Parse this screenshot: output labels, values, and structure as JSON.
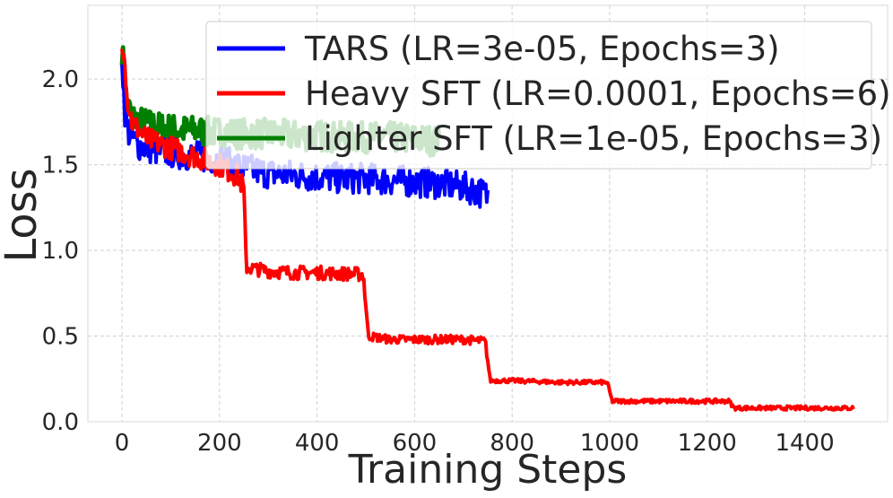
{
  "chart_data": {
    "type": "line",
    "title": "",
    "xlabel": "Training Steps",
    "ylabel": "Loss",
    "xlim": [
      -70,
      1570
    ],
    "ylim": [
      0,
      2.43
    ],
    "xticks": [
      "0",
      "200",
      "400",
      "600",
      "800",
      "1000",
      "1200",
      "1400"
    ],
    "xtick_values": [
      0,
      200,
      400,
      600,
      800,
      1000,
      1200,
      1400
    ],
    "yticks": [
      "0.0",
      "0.5",
      "1.0",
      "1.5",
      "2.0"
    ],
    "ytick_values": [
      0.0,
      0.5,
      1.0,
      1.5,
      2.0
    ],
    "grid": true,
    "legend_position": "top-right",
    "series": [
      {
        "name": "TARS (LR=3e-05, Epochs=3)",
        "color": "#0000ff",
        "x": [
          0,
          5,
          10,
          20,
          30,
          50,
          75,
          100,
          150,
          200,
          250,
          300,
          350,
          400,
          450,
          500,
          550,
          600,
          650,
          700,
          725,
          750
        ],
        "y": [
          2.15,
          1.85,
          1.72,
          1.66,
          1.62,
          1.6,
          1.58,
          1.57,
          1.55,
          1.53,
          1.48,
          1.45,
          1.44,
          1.43,
          1.42,
          1.42,
          1.41,
          1.4,
          1.39,
          1.37,
          1.35,
          1.32
        ]
      },
      {
        "name": "Heavy SFT (LR=0.0001, Epochs=6)",
        "color": "#ff0000",
        "x": [
          0,
          5,
          10,
          20,
          50,
          100,
          150,
          200,
          240,
          250,
          255,
          300,
          350,
          400,
          495,
          505,
          550,
          600,
          700,
          745,
          755,
          800,
          900,
          995,
          1005,
          1100,
          1200,
          1245,
          1255,
          1350,
          1450,
          1500
        ],
        "y": [
          2.18,
          2.2,
          1.9,
          1.75,
          1.65,
          1.6,
          1.55,
          1.5,
          1.43,
          1.35,
          0.9,
          0.88,
          0.87,
          0.87,
          0.86,
          0.5,
          0.48,
          0.48,
          0.48,
          0.47,
          0.24,
          0.24,
          0.23,
          0.23,
          0.12,
          0.12,
          0.12,
          0.12,
          0.08,
          0.08,
          0.08,
          0.08
        ]
      },
      {
        "name": "Lighter SFT (LR=1e-05, Epochs=3)",
        "color": "#008000",
        "x": [
          0,
          5,
          10,
          20,
          30,
          50,
          75,
          100,
          125,
          150,
          175,
          200,
          250,
          300,
          350,
          400,
          450,
          500,
          550,
          600,
          650
        ],
        "y": [
          2.18,
          1.98,
          1.85,
          1.78,
          1.76,
          1.74,
          1.72,
          1.71,
          1.7,
          1.7,
          1.69,
          1.69,
          1.68,
          1.68,
          1.67,
          1.67,
          1.66,
          1.66,
          1.66,
          1.65,
          1.64
        ]
      }
    ]
  }
}
